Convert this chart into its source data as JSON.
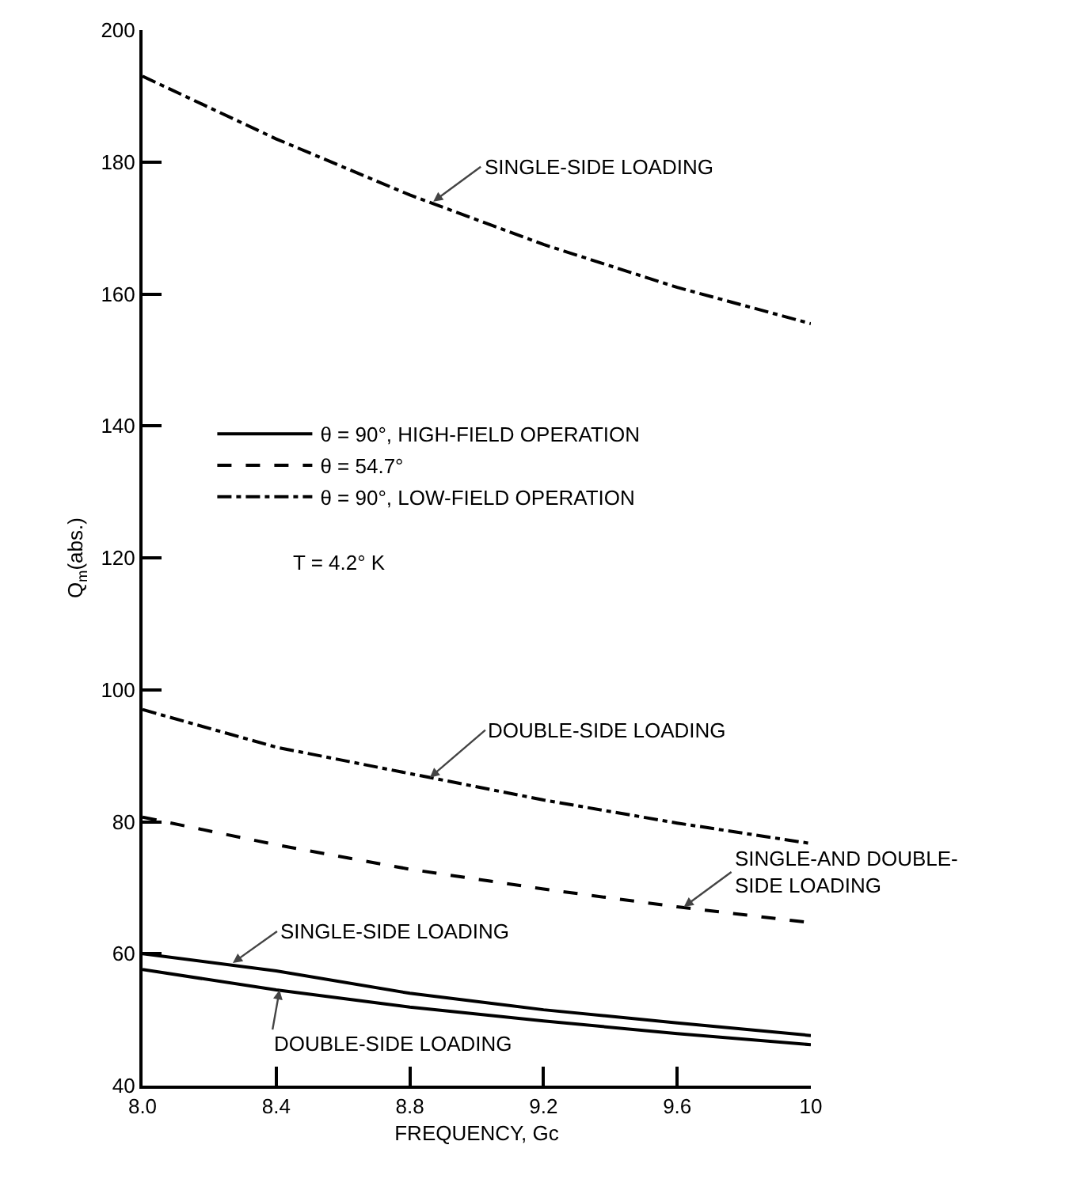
{
  "chart_data": {
    "type": "line",
    "xlabel": "FREQUENCY, Gc",
    "ylabel": "Q$_{m}$(abs.)",
    "x": [
      8.0,
      8.4,
      8.8,
      9.2,
      9.6,
      10.0
    ],
    "series": [
      {
        "name": "θ = 90°, HIGH-FIELD OPERATION",
        "color": "#000000",
        "line_style": "solid",
        "values": [
          60,
          57.4,
          54,
          51.5,
          49.5,
          47.6
        ]
      },
      {
        "color": "#000000",
        "line_style": "solid",
        "values": [
          57.6,
          54.5,
          51.9,
          49.8,
          47.9,
          46.2
        ]
      },
      {
        "name": "θ = 54.7°",
        "color": "#000000",
        "line_style": "dashed",
        "values": [
          80.7,
          76.5,
          72.8,
          69.8,
          67.1,
          64.7
        ]
      },
      {
        "name": "θ = 90°, LOW-FIELD OPERATION",
        "color": "#000000",
        "line_style": "dashdot",
        "values": [
          193,
          183.5,
          175,
          167.5,
          161,
          155.5
        ]
      },
      {
        "color": "#000000",
        "line_style": "dashdot",
        "values": [
          97,
          91.3,
          87.3,
          83.3,
          79.8,
          76.7
        ]
      }
    ],
    "xlim": [
      8,
      10
    ],
    "xticks": [
      {
        "value": 8,
        "label": "8.0"
      },
      8.4,
      8.8,
      9.2,
      9.6,
      10
    ],
    "ylim": [
      40,
      200
    ],
    "yticks": [
      40,
      60,
      80,
      100,
      120,
      140,
      160,
      180,
      200
    ],
    "grid": false,
    "legend": "left",
    "marker": "none",
    "annotations": [
      {
        "text": "SINGLE-SIDE LOADING",
        "x": 8.87,
        "y": 174
      },
      {
        "text": "DOUBLE-SIDE LOADING",
        "x": 8.86,
        "y": 86.7
      },
      {
        "text": "SINGLE-AND DOUBLE-\nSIDE LOADING",
        "x": 9.62,
        "y": 67.1
      },
      {
        "text": "SINGLE-SIDE LOADING",
        "x": 8.27,
        "y": 58.6
      },
      {
        "text": "DOUBLE-SIDE LOADING",
        "x": 8.41,
        "y": 54.5
      },
      "T = 4.2° K"
    ]
  }
}
